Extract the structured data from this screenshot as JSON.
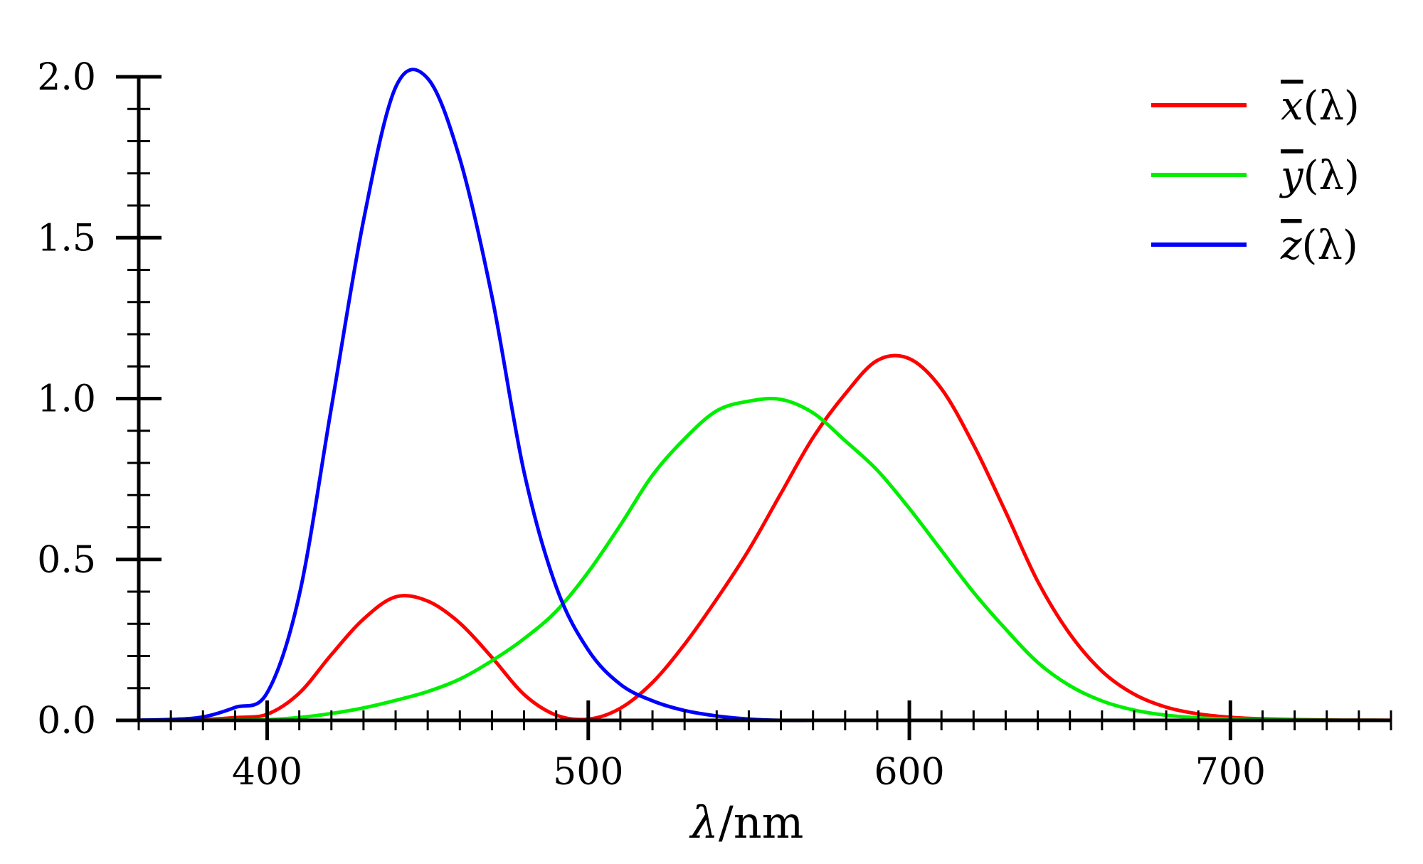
{
  "chart_data": {
    "type": "line",
    "title": "",
    "xlabel": {
      "symbol": "λ",
      "unit": "/nm"
    },
    "ylabel": "",
    "xlim": [
      360,
      750
    ],
    "ylim": [
      0,
      2
    ],
    "x_ticks": [
      400,
      500,
      600,
      700
    ],
    "x_tick_labels": [
      "400",
      "500",
      "600",
      "700"
    ],
    "x_minor_step": 10,
    "y_ticks": [
      0,
      0.5,
      1.0,
      1.5,
      2.0
    ],
    "y_tick_labels": [
      "0.0",
      "0.5",
      "1.0",
      "1.5",
      "2.0"
    ],
    "y_minor_step": 0.1,
    "grid": false,
    "legend_position": "top-right",
    "x": [
      360,
      370,
      380,
      390,
      400,
      410,
      420,
      430,
      440,
      450,
      460,
      470,
      480,
      490,
      500,
      510,
      520,
      530,
      540,
      550,
      560,
      570,
      580,
      590,
      600,
      610,
      620,
      630,
      640,
      650,
      660,
      670,
      680,
      690,
      700,
      710,
      720,
      730,
      740,
      750
    ],
    "series": [
      {
        "name": "x̄(λ)",
        "label": {
          "base": "x",
          "arg": "(λ)"
        },
        "color": "#ff0000",
        "values": [
          0.0001,
          0.0004,
          0.0022,
          0.0087,
          0.0191,
          0.0847,
          0.2045,
          0.3147,
          0.3837,
          0.3707,
          0.3023,
          0.1956,
          0.0805,
          0.0162,
          0.0038,
          0.0375,
          0.1177,
          0.2365,
          0.3768,
          0.5298,
          0.7052,
          0.8787,
          1.0142,
          1.1185,
          1.124,
          1.0305,
          0.8563,
          0.6475,
          0.4316,
          0.2683,
          0.1526,
          0.0813,
          0.0409,
          0.0199,
          0.0096,
          0.0046,
          0.0022,
          0.001,
          0.0005,
          0.0003
        ]
      },
      {
        "name": "ȳ(λ)",
        "label": {
          "base": "y",
          "arg": "(λ)"
        },
        "color": "#00ee00",
        "values": [
          0.0,
          0.0,
          0.0002,
          0.0009,
          0.002,
          0.0088,
          0.0214,
          0.0387,
          0.0621,
          0.0895,
          0.1282,
          0.1852,
          0.2536,
          0.3391,
          0.4608,
          0.6067,
          0.7618,
          0.8752,
          0.962,
          0.9918,
          0.9973,
          0.9555,
          0.8689,
          0.7774,
          0.6583,
          0.528,
          0.3981,
          0.2835,
          0.1798,
          0.1076,
          0.0603,
          0.0318,
          0.0159,
          0.0077,
          0.0037,
          0.0018,
          0.0008,
          0.0004,
          0.0002,
          0.0001
        ]
      },
      {
        "name": "z̄(λ)",
        "label": {
          "base": "z",
          "arg": "(λ)"
        },
        "color": "#0000ff",
        "values": [
          0.0006,
          0.0026,
          0.0106,
          0.0403,
          0.086,
          0.3894,
          0.9725,
          1.5535,
          1.9673,
          1.9948,
          1.7454,
          1.3176,
          0.7721,
          0.4153,
          0.2185,
          0.112,
          0.0607,
          0.0305,
          0.0137,
          0.004,
          0.0,
          0.0,
          0.0,
          0.0,
          0.0,
          0.0,
          0.0,
          0.0,
          0.0,
          0.0,
          0.0,
          0.0,
          0.0,
          0.0,
          0.0,
          0.0,
          0.0,
          0.0,
          0.0,
          0.0
        ]
      }
    ]
  }
}
